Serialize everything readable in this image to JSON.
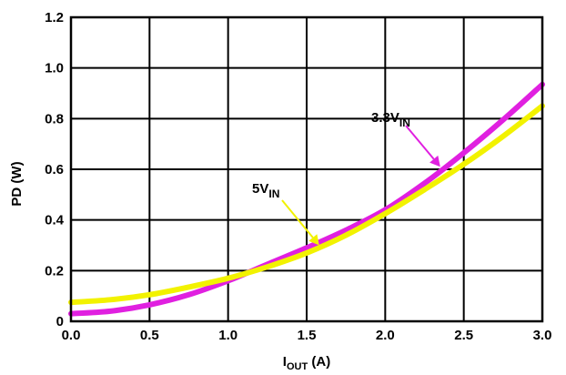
{
  "chart_data": {
    "type": "line",
    "title": "",
    "xlabel": {
      "main": "I",
      "sub": "OUT",
      "unit": " (A)"
    },
    "ylabel": "PD (W)",
    "xlim": [
      0,
      3
    ],
    "ylim": [
      0,
      1.2
    ],
    "xticks": [
      "0.0",
      "0.5",
      "1.0",
      "1.5",
      "2.0",
      "2.5",
      "3.0"
    ],
    "yticks": [
      "0",
      "0.2",
      "0.4",
      "0.6",
      "0.8",
      "1.0",
      "1.2"
    ],
    "grid": true,
    "series": [
      {
        "name": "3.3V_IN",
        "color": "#e020e0",
        "x": [
          0.0,
          0.25,
          0.5,
          0.75,
          1.0,
          1.25,
          1.5,
          1.75,
          2.0,
          2.25,
          2.5,
          2.75,
          3.0
        ],
        "values": [
          0.03,
          0.04,
          0.065,
          0.105,
          0.16,
          0.225,
          0.29,
          0.36,
          0.44,
          0.545,
          0.665,
          0.795,
          0.935
        ]
      },
      {
        "name": "5V_IN",
        "color": "#f2f200",
        "x": [
          0.0,
          0.25,
          0.5,
          0.75,
          1.0,
          1.25,
          1.5,
          1.75,
          2.0,
          2.25,
          2.5,
          2.75,
          3.0
        ],
        "values": [
          0.075,
          0.085,
          0.105,
          0.135,
          0.17,
          0.215,
          0.27,
          0.34,
          0.425,
          0.52,
          0.62,
          0.73,
          0.85
        ]
      }
    ],
    "annotations": [
      {
        "series": "3.3V_IN",
        "main": "3.3V",
        "sub": "IN",
        "arrow_to_x": 2.35,
        "arrow_to_y": 0.61,
        "color": "#e020e0"
      },
      {
        "series": "5V_IN",
        "main": "5V",
        "sub": "IN",
        "arrow_to_x": 1.58,
        "arrow_to_y": 0.3,
        "color": "#f2f200"
      }
    ]
  }
}
